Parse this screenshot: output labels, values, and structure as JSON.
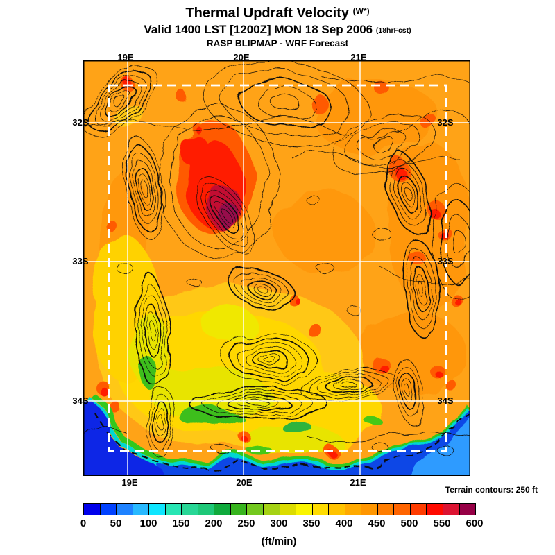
{
  "header": {
    "title": "Thermal Updraft Velocity",
    "title_suffix": "(W*)",
    "valid_line": "Valid 1400 LST [1200Z] MON 18 Sep 2006",
    "valid_suffix": "(18hrFcst)",
    "model_line": "RASP BLIPMAP - WRF Forecast"
  },
  "map": {
    "top_labels": [
      "19E",
      "20E",
      "21E"
    ],
    "bottom_labels": [
      "19E",
      "20E",
      "21E"
    ],
    "left_labels": [
      "32S",
      "33S",
      "34S"
    ],
    "right_labels": [
      "32S",
      "33S",
      "34S"
    ]
  },
  "footer": {
    "terrain_note": "Terrain contours: 250 ft",
    "unit_label": "(ft/min)"
  },
  "colorbar": {
    "ticks": [
      "0",
      "50",
      "100",
      "150",
      "200",
      "250",
      "300",
      "350",
      "400",
      "450",
      "500",
      "550",
      "600"
    ],
    "colors": [
      "#0000eb",
      "#0041ff",
      "#1e82ff",
      "#28b9ff",
      "#0fe6ff",
      "#28e6b4",
      "#28d796",
      "#1ec878",
      "#0faa3c",
      "#37b41e",
      "#73c81e",
      "#a5d214",
      "#dcdc00",
      "#faf500",
      "#ffdc00",
      "#ffc300",
      "#ffaa00",
      "#ff9600",
      "#ff7d00",
      "#ff6400",
      "#ff3c00",
      "#ff0a00",
      "#dc1432",
      "#960046"
    ]
  },
  "chart_data": {
    "type": "heatmap",
    "title": "Thermal Updraft Velocity (W*)",
    "subtitle": "Valid 1400 LST [1200Z] MON 18 Sep 2006 (18hrFcst)",
    "source": "RASP BLIPMAP - WRF Forecast",
    "x_ticks": [
      "19E",
      "20E",
      "21E"
    ],
    "y_ticks": [
      "32S",
      "33S",
      "34S"
    ],
    "colorbar": {
      "min": 0,
      "max": 600,
      "step": 50,
      "unit": "ft/min",
      "n_cells": 24
    },
    "terrain_contour_interval_ft": 250,
    "grid": "white solid lat/lon lines; white dashed inner model-domain rectangle",
    "value_summary": [
      {
        "region": "most inland area (orange)",
        "ft_min": "400-450"
      },
      {
        "region": "hot zone near 19.6-19.9E, 32.3-32.6S (red/crimson core)",
        "ft_min": "525-600"
      },
      {
        "region": "scattered red-orange spots across east and north",
        "ft_min": "475-550"
      },
      {
        "region": "yellow valleys lower-centre and west band",
        "ft_min": "300-375"
      },
      {
        "region": "green coastal fringe patches",
        "ft_min": "150-250"
      },
      {
        "region": "south-coast sea and bottom-left ocean (blue)",
        "ft_min": "0-100"
      }
    ]
  }
}
